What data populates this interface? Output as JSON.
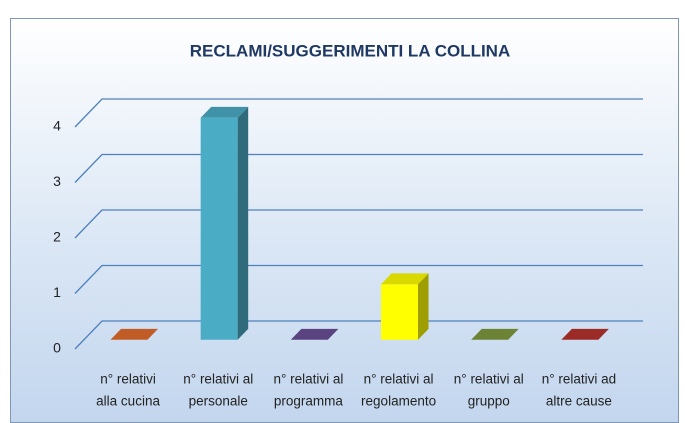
{
  "chart_data": {
    "type": "bar3d",
    "title": "RECLAMI/SUGGERIMENTI  LA COLLINA",
    "categories": [
      [
        "n° relativi",
        "alla cucina"
      ],
      [
        "n° relativi al",
        "personale"
      ],
      [
        "n° relativi al",
        "programma"
      ],
      [
        "n° relativi al",
        "regolamento"
      ],
      [
        "n° relativi al",
        "gruppo"
      ],
      [
        "n° relativi ad",
        "altre cause"
      ]
    ],
    "values": [
      0,
      4,
      0,
      1,
      0,
      0
    ],
    "colors": [
      "#e46c2e",
      "#4bacc6",
      "#6a4f96",
      "#ffff00",
      "#7f9a3e",
      "#b8322f"
    ],
    "ylim": [
      0,
      4
    ],
    "yticks": [
      0,
      1,
      2,
      3,
      4
    ],
    "grid": true
  }
}
